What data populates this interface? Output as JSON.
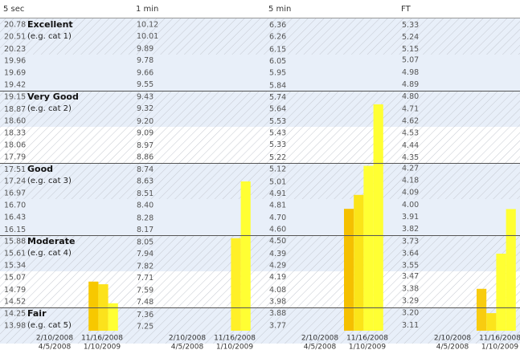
{
  "chart_data": [
    {
      "type": "bar",
      "title": "5 sec",
      "yticks": [
        20.78,
        20.51,
        20.23,
        19.96,
        19.69,
        19.42,
        19.15,
        18.87,
        {
          "value": 18.6,
          "label": "18.60"
        },
        18.33,
        18.06,
        17.79,
        17.51,
        17.24,
        16.97,
        {
          "value": 16.7,
          "label": "16.70"
        },
        16.43,
        16.15,
        15.88,
        15.61,
        15.34,
        15.07,
        14.79,
        14.52,
        14.25,
        13.98
      ],
      "ylim": [
        13.87,
        20.925
      ],
      "values": [
        null,
        14.98,
        14.92,
        14.49
      ],
      "colors": [
        null,
        "#f7c800",
        "#fce21c",
        "#ffff33"
      ]
    },
    {
      "type": "bar",
      "title": "1 min",
      "yticks": [
        10.12,
        10.01,
        9.89,
        9.78,
        9.66,
        9.55,
        9.43,
        9.32,
        {
          "value": 9.2,
          "label": "9.20"
        },
        9.09,
        8.97,
        8.86,
        8.74,
        8.63,
        8.51,
        {
          "value": 8.4,
          "label": "8.40"
        },
        8.28,
        8.17,
        8.05,
        7.94,
        7.82,
        7.71,
        7.59,
        7.48,
        7.36,
        7.25
      ],
      "ylim": [
        7.21,
        10.18
      ],
      "values": [
        null,
        null,
        8.09,
        8.63
      ],
      "colors": [
        null,
        null,
        "#fff028",
        "#ffff33"
      ]
    },
    {
      "type": "bar",
      "title": "5 min",
      "yticks": [
        6.36,
        6.26,
        6.15,
        6.05,
        5.95,
        5.84,
        5.74,
        5.64,
        5.53,
        5.43,
        5.33,
        5.22,
        5.12,
        5.01,
        4.91,
        4.81,
        {
          "value": 4.7,
          "label": "4.70"
        },
        {
          "value": 4.6,
          "label": "4.60"
        },
        {
          "value": 4.5,
          "label": "4.50"
        },
        4.39,
        4.29,
        4.19,
        4.08,
        3.98,
        3.88,
        3.77
      ],
      "ylim": [
        3.73,
        6.42
      ],
      "values": [
        4.78,
        4.9,
        5.15,
        5.68
      ],
      "colors": [
        "#f5c000",
        "#fbe419",
        "#ffff33",
        "#ffff33"
      ]
    },
    {
      "type": "bar",
      "title": "FT",
      "yticks": [
        5.33,
        5.24,
        5.15,
        5.07,
        4.98,
        4.89,
        {
          "value": 4.8,
          "label": "4.80"
        },
        4.71,
        4.62,
        4.53,
        4.44,
        4.35,
        4.27,
        4.18,
        4.09,
        {
          "value": 4.0,
          "label": "4.00"
        },
        3.91,
        3.82,
        3.73,
        3.64,
        3.55,
        3.47,
        3.38,
        3.29,
        {
          "value": 3.2,
          "label": "3.20"
        },
        3.11
      ],
      "ylim": [
        3.07,
        5.38
      ],
      "values": [
        3.38,
        3.2,
        3.64,
        3.97
      ],
      "colors": [
        "#f8cc10",
        "#fce41c",
        "#ffff33",
        "#ffff33"
      ]
    }
  ],
  "levels": [
    {
      "name": "Excellent",
      "note": "(e.g. cat 1)"
    },
    {
      "name": "Very Good",
      "note": "(e.g. cat 2)"
    },
    {
      "name": "Good",
      "note": "(e.g. cat 3)"
    },
    {
      "name": "Moderate",
      "note": "(e.g. cat 4)"
    },
    {
      "name": "Fair",
      "note": "(e.g. cat 5)"
    }
  ],
  "date_labels": [
    "2/10/2008",
    "4/5/2008",
    "11/16/2008",
    "1/10/2009"
  ]
}
